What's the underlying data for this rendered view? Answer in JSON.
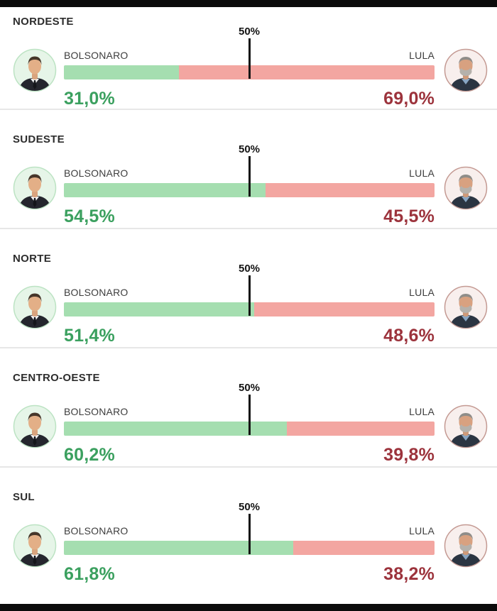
{
  "marker": {
    "label": "50%"
  },
  "candidates": {
    "left": {
      "name": "BOLSONARO",
      "bar_color": "#a5deb0",
      "text_color": "#3ba05f"
    },
    "right": {
      "name": "LULA",
      "bar_color": "#f3a6a1",
      "text_color": "#9c333c"
    }
  },
  "regions": [
    {
      "name": "NORDESTE",
      "left_pct": 31.0,
      "right_pct": 69.0,
      "left_label": "31,0%",
      "right_label": "69,0%"
    },
    {
      "name": "SUDESTE",
      "left_pct": 54.5,
      "right_pct": 45.5,
      "left_label": "54,5%",
      "right_label": "45,5%"
    },
    {
      "name": "NORTE",
      "left_pct": 51.4,
      "right_pct": 48.6,
      "left_label": "51,4%",
      "right_label": "48,6%"
    },
    {
      "name": "CENTRO-OESTE",
      "left_pct": 60.2,
      "right_pct": 39.8,
      "left_label": "60,2%",
      "right_label": "39,8%"
    },
    {
      "name": "SUL",
      "left_pct": 61.8,
      "right_pct": 38.2,
      "left_label": "61,8%",
      "right_label": "38,2%"
    }
  ],
  "chart_data": {
    "type": "bar",
    "subtype": "horizontal-stacked-100pct-per-region",
    "title": "",
    "categories": [
      "NORDESTE",
      "SUDESTE",
      "NORTE",
      "CENTRO-OESTE",
      "SUL"
    ],
    "series": [
      {
        "name": "BOLSONARO",
        "values": [
          31.0,
          54.5,
          51.4,
          60.2,
          61.8
        ],
        "color": "#a5deb0",
        "label_color": "#3ba05f"
      },
      {
        "name": "LULA",
        "values": [
          69.0,
          45.5,
          48.6,
          39.8,
          38.2
        ],
        "color": "#f3a6a1",
        "label_color": "#9c333c"
      }
    ],
    "value_suffix": "%",
    "decimal_separator": ",",
    "reference_line": {
      "value": 50,
      "label": "50%"
    },
    "xlim": [
      0,
      100
    ],
    "grid": false,
    "legend_position": "inline-labels-above-bar"
  }
}
